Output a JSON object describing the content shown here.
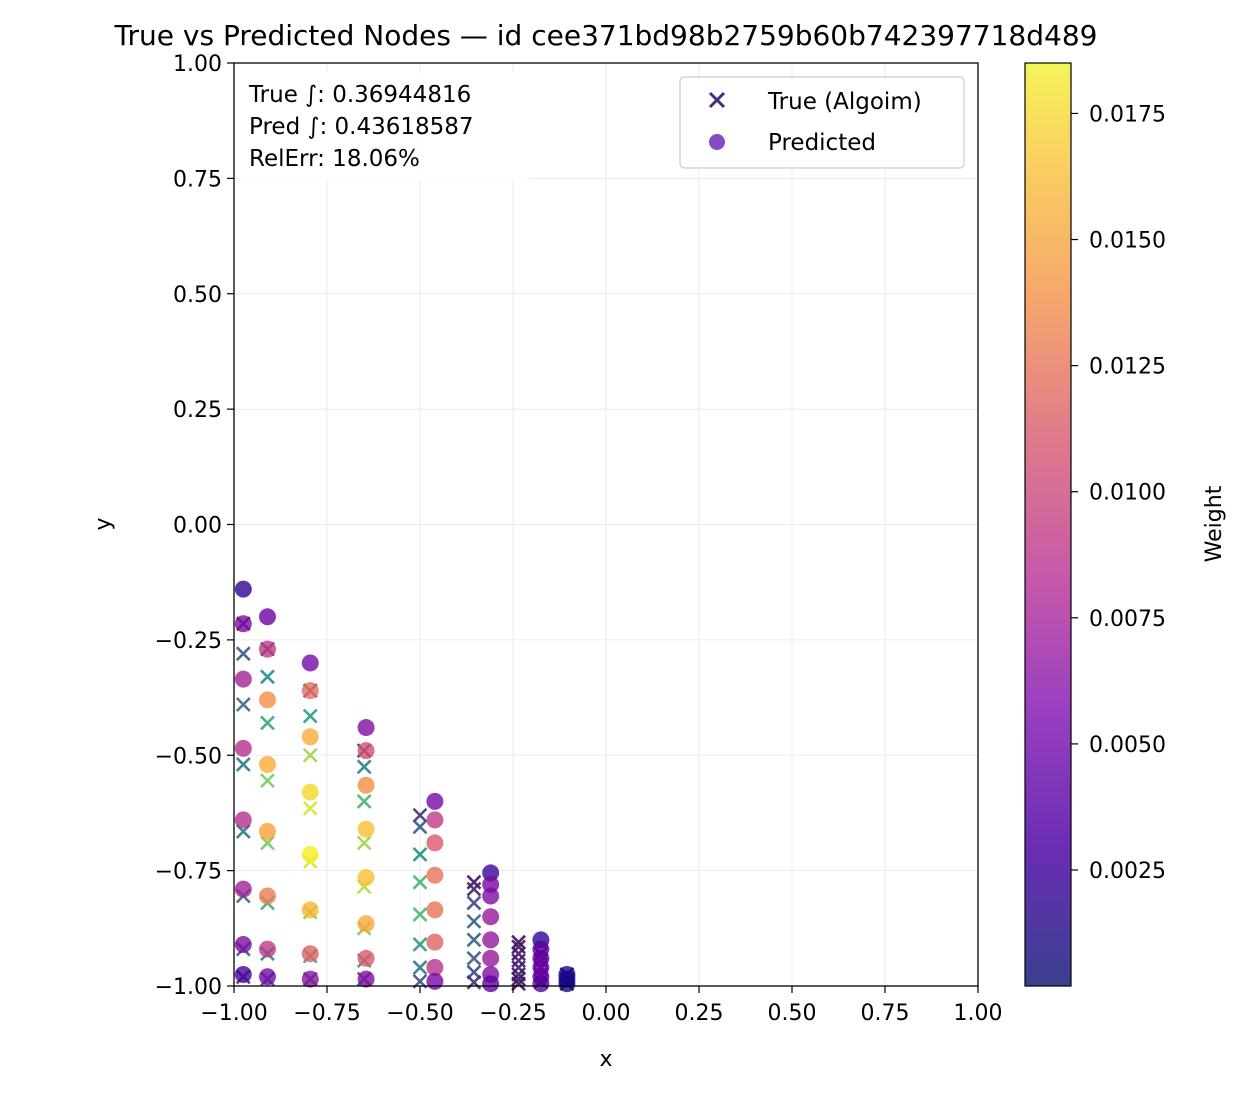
{
  "chart_data": {
    "type": "scatter",
    "title": "True vs Predicted Nodes — id cee371bd98b2759b60b742397718d489",
    "xlabel": "x",
    "ylabel": "y",
    "xlim": [
      -1.0,
      1.0
    ],
    "ylim": [
      -1.0,
      1.0
    ],
    "grid": true,
    "x_ticks": [
      "−1.00",
      "−0.75",
      "−0.50",
      "−0.25",
      "0.00",
      "0.25",
      "0.50",
      "0.75",
      "1.00"
    ],
    "y_ticks": [
      "−1.00",
      "−0.75",
      "−0.50",
      "−0.25",
      "0.00",
      "0.25",
      "0.50",
      "0.75",
      "1.00"
    ],
    "legend": {
      "placement": "top-right",
      "entries": [
        {
          "label": "True (Algoim)",
          "marker": "x",
          "color": "#5b3a8c"
        },
        {
          "label": "Predicted",
          "marker": "o",
          "color": "#6a2db4"
        }
      ]
    },
    "annotation": [
      "True ∫: 0.36944816",
      "Pred ∫: 0.43618587",
      "RelErr: 18.06%"
    ],
    "colorbar": {
      "label": "Weight",
      "range": [
        0.0002,
        0.0185
      ],
      "ticks": [
        "0.0025",
        "0.0050",
        "0.0075",
        "0.0100",
        "0.0125",
        "0.0150",
        "0.0175"
      ],
      "tick_values": [
        0.0025,
        0.005,
        0.0075,
        0.01,
        0.0125,
        0.015,
        0.0175
      ],
      "colormap": "plasma"
    },
    "series": [
      {
        "name": "True (Algoim)",
        "marker": "x",
        "colormap": "viridis",
        "points": [
          [
            -0.975,
            -0.215,
            0.12
          ],
          [
            -0.975,
            -0.28,
            0.28
          ],
          [
            -0.975,
            -0.39,
            0.35
          ],
          [
            -0.975,
            -0.52,
            0.4
          ],
          [
            -0.975,
            -0.665,
            0.4
          ],
          [
            -0.975,
            -0.805,
            0.35
          ],
          [
            -0.975,
            -0.92,
            0.28
          ],
          [
            -0.975,
            -0.98,
            0.15
          ],
          [
            -0.91,
            -0.27,
            0.2
          ],
          [
            -0.91,
            -0.33,
            0.5
          ],
          [
            -0.91,
            -0.43,
            0.6
          ],
          [
            -0.91,
            -0.555,
            0.78
          ],
          [
            -0.91,
            -0.69,
            0.78
          ],
          [
            -0.91,
            -0.82,
            0.62
          ],
          [
            -0.91,
            -0.93,
            0.5
          ],
          [
            -0.91,
            -0.985,
            0.28
          ],
          [
            -0.795,
            -0.36,
            0.2
          ],
          [
            -0.795,
            -0.415,
            0.55
          ],
          [
            -0.795,
            -0.5,
            0.85
          ],
          [
            -0.795,
            -0.615,
            0.95
          ],
          [
            -0.795,
            -0.73,
            0.95
          ],
          [
            -0.795,
            -0.84,
            0.8
          ],
          [
            -0.795,
            -0.935,
            0.6
          ],
          [
            -0.795,
            -0.985,
            0.32
          ],
          [
            -0.65,
            -0.49,
            0.15
          ],
          [
            -0.65,
            -0.525,
            0.45
          ],
          [
            -0.65,
            -0.6,
            0.65
          ],
          [
            -0.65,
            -0.69,
            0.85
          ],
          [
            -0.65,
            -0.785,
            0.9
          ],
          [
            -0.65,
            -0.875,
            0.8
          ],
          [
            -0.65,
            -0.945,
            0.55
          ],
          [
            -0.65,
            -0.985,
            0.3
          ],
          [
            -0.5,
            -0.63,
            0.15
          ],
          [
            -0.5,
            -0.655,
            0.3
          ],
          [
            -0.5,
            -0.715,
            0.5
          ],
          [
            -0.5,
            -0.775,
            0.65
          ],
          [
            -0.5,
            -0.845,
            0.68
          ],
          [
            -0.5,
            -0.91,
            0.55
          ],
          [
            -0.5,
            -0.96,
            0.4
          ],
          [
            -0.5,
            -0.99,
            0.25
          ],
          [
            -0.355,
            -0.775,
            0.05
          ],
          [
            -0.355,
            -0.79,
            0.12
          ],
          [
            -0.355,
            -0.82,
            0.22
          ],
          [
            -0.355,
            -0.86,
            0.3
          ],
          [
            -0.355,
            -0.9,
            0.32
          ],
          [
            -0.355,
            -0.94,
            0.28
          ],
          [
            -0.355,
            -0.97,
            0.22
          ],
          [
            -0.355,
            -0.992,
            0.15
          ],
          [
            -0.235,
            -0.905,
            0.03
          ],
          [
            -0.235,
            -0.915,
            0.06
          ],
          [
            -0.235,
            -0.93,
            0.08
          ],
          [
            -0.235,
            -0.945,
            0.1
          ],
          [
            -0.235,
            -0.96,
            0.1
          ],
          [
            -0.235,
            -0.975,
            0.08
          ],
          [
            -0.235,
            -0.985,
            0.06
          ],
          [
            -0.235,
            -0.995,
            0.05
          ],
          [
            -0.175,
            -0.93,
            0.03
          ],
          [
            -0.175,
            -0.945,
            0.04
          ],
          [
            -0.175,
            -0.96,
            0.05
          ],
          [
            -0.175,
            -0.975,
            0.05
          ],
          [
            -0.175,
            -0.99,
            0.04
          ],
          [
            -0.105,
            -0.975,
            0.01
          ],
          [
            -0.105,
            -0.985,
            0.01
          ],
          [
            -0.105,
            -0.995,
            0.01
          ]
        ]
      },
      {
        "name": "Predicted",
        "marker": "o",
        "colormap": "plasma",
        "points": [
          [
            -0.975,
            -0.14,
            0.0015
          ],
          [
            -0.975,
            -0.215,
            0.0048
          ],
          [
            -0.975,
            -0.335,
            0.0068
          ],
          [
            -0.975,
            -0.485,
            0.0078
          ],
          [
            -0.975,
            -0.64,
            0.0078
          ],
          [
            -0.975,
            -0.79,
            0.0068
          ],
          [
            -0.975,
            -0.91,
            0.0048
          ],
          [
            -0.975,
            -0.975,
            0.0025
          ],
          [
            -0.91,
            -0.2,
            0.004
          ],
          [
            -0.91,
            -0.27,
            0.0085
          ],
          [
            -0.91,
            -0.38,
            0.0135
          ],
          [
            -0.91,
            -0.52,
            0.015
          ],
          [
            -0.91,
            -0.665,
            0.0145
          ],
          [
            -0.91,
            -0.805,
            0.0125
          ],
          [
            -0.91,
            -0.92,
            0.0085
          ],
          [
            -0.91,
            -0.98,
            0.0045
          ],
          [
            -0.795,
            -0.3,
            0.0045
          ],
          [
            -0.795,
            -0.36,
            0.0118
          ],
          [
            -0.795,
            -0.46,
            0.015
          ],
          [
            -0.795,
            -0.58,
            0.017
          ],
          [
            -0.795,
            -0.715,
            0.018
          ],
          [
            -0.795,
            -0.835,
            0.0155
          ],
          [
            -0.795,
            -0.93,
            0.011
          ],
          [
            -0.795,
            -0.985,
            0.0055
          ],
          [
            -0.645,
            -0.44,
            0.005
          ],
          [
            -0.645,
            -0.49,
            0.01
          ],
          [
            -0.645,
            -0.565,
            0.0135
          ],
          [
            -0.645,
            -0.66,
            0.016
          ],
          [
            -0.645,
            -0.765,
            0.016
          ],
          [
            -0.645,
            -0.865,
            0.0148
          ],
          [
            -0.645,
            -0.94,
            0.0105
          ],
          [
            -0.645,
            -0.985,
            0.005
          ],
          [
            -0.46,
            -0.6,
            0.0045
          ],
          [
            -0.46,
            -0.64,
            0.0085
          ],
          [
            -0.46,
            -0.69,
            0.0105
          ],
          [
            -0.46,
            -0.76,
            0.012
          ],
          [
            -0.46,
            -0.835,
            0.012
          ],
          [
            -0.46,
            -0.905,
            0.011
          ],
          [
            -0.46,
            -0.96,
            0.008
          ],
          [
            -0.46,
            -0.99,
            0.0045
          ],
          [
            -0.31,
            -0.755,
            0.002
          ],
          [
            -0.31,
            -0.78,
            0.0045
          ],
          [
            -0.31,
            -0.805,
            0.005
          ],
          [
            -0.31,
            -0.85,
            0.006
          ],
          [
            -0.31,
            -0.9,
            0.006
          ],
          [
            -0.31,
            -0.94,
            0.006
          ],
          [
            -0.31,
            -0.975,
            0.005
          ],
          [
            -0.31,
            -0.995,
            0.0035
          ],
          [
            -0.175,
            -0.9,
            0.0015
          ],
          [
            -0.175,
            -0.92,
            0.003
          ],
          [
            -0.175,
            -0.94,
            0.0035
          ],
          [
            -0.175,
            -0.96,
            0.004
          ],
          [
            -0.175,
            -0.98,
            0.0035
          ],
          [
            -0.175,
            -0.995,
            0.003
          ],
          [
            -0.105,
            -0.975,
            0.0005
          ],
          [
            -0.105,
            -0.985,
            0.0005
          ],
          [
            -0.105,
            -0.995,
            0.0005
          ]
        ]
      }
    ]
  }
}
